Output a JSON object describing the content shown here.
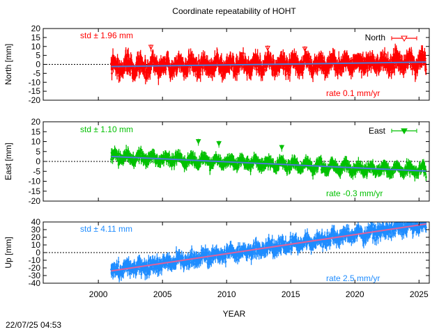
{
  "chart_data": {
    "title": "Coordinate repeatability of HOHT",
    "xlabel": "YEAR",
    "xlim": [
      1995.7,
      2025.8
    ],
    "xticks": [
      2000,
      2005,
      2010,
      2015,
      2020,
      2025
    ],
    "time_range": [
      2001.0,
      2025.55
    ],
    "panels": [
      {
        "name": "North",
        "type": "scatter",
        "ylabel": "North [mm]",
        "ylim": [
          -20,
          20
        ],
        "yticks": [
          -20,
          -15,
          -10,
          -5,
          0,
          5,
          10,
          15,
          20
        ],
        "legend": "North",
        "legend_marker": "open-triangle-down",
        "std_label": "std ± 1.96 mm",
        "rate_label": "rate  0.1 mm/yr",
        "color": "#ff0000",
        "trend_color": "#4a7ad8",
        "trend_start": -1.2,
        "rate_mm_per_yr": 0.1,
        "std_mm": 1.96,
        "seasonal_amplitude": 3.0,
        "outliers": [
          {
            "x": 2004.1,
            "y": 9.5
          },
          {
            "x": 2013.2,
            "y": 9.0
          },
          {
            "x": 2016.1,
            "y": 8.5
          }
        ]
      },
      {
        "name": "East",
        "type": "scatter",
        "ylabel": "East [mm]",
        "ylim": [
          -20,
          20
        ],
        "yticks": [
          -20,
          -15,
          -10,
          -5,
          0,
          5,
          10,
          15,
          20
        ],
        "legend": "East",
        "legend_marker": "filled-triangle-down",
        "std_label": "std ± 1.10 mm",
        "rate_label": "rate -0.3 mm/yr",
        "color": "#00c000",
        "trend_color": "#4a7ad8",
        "trend_start": 2.5,
        "rate_mm_per_yr": -0.3,
        "std_mm": 1.1,
        "seasonal_amplitude": 2.0,
        "outliers": [
          {
            "x": 2007.8,
            "y": 10.0
          },
          {
            "x": 2009.4,
            "y": 9.0
          },
          {
            "x": 2014.3,
            "y": 7.0
          }
        ]
      },
      {
        "name": "Up",
        "type": "scatter",
        "ylabel": "Up [mm]",
        "ylim": [
          -40,
          40
        ],
        "yticks": [
          -40,
          -30,
          -20,
          -10,
          0,
          10,
          20,
          30,
          40
        ],
        "legend": "",
        "legend_marker": "",
        "std_label": "std ± 4.11 mm",
        "rate_label": "rate  2.5 mm/yr",
        "color": "#1e8cff",
        "trend_color": "#e0609a",
        "trend_start": -24,
        "rate_mm_per_yr": 2.5,
        "std_mm": 4.11,
        "seasonal_amplitude": 4.0,
        "outliers": []
      }
    ]
  },
  "footer": {
    "timestamp": "22/07/25 04:53"
  }
}
